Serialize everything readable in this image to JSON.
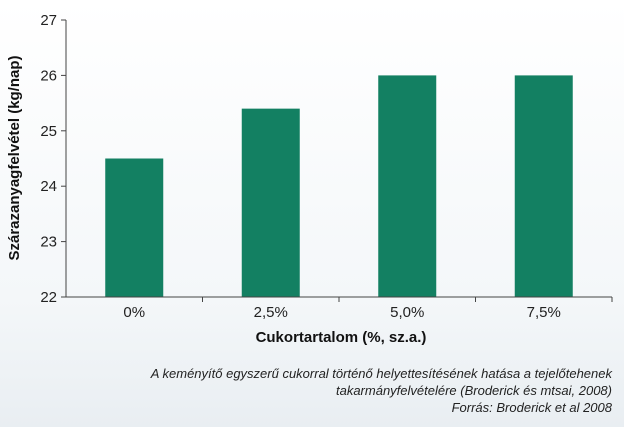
{
  "chart_data": {
    "type": "bar",
    "categories": [
      "0%",
      "2,5%",
      "5,0%",
      "7,5%"
    ],
    "values": [
      24.5,
      25.4,
      26.0,
      26.0
    ],
    "title": "",
    "xlabel": "Cukortartalom (%, sz.a.)",
    "ylabel": "Szárazanyagfelvétel (kg/nap)",
    "ylim": [
      22,
      27
    ],
    "yticks": [
      22,
      23,
      24,
      25,
      26,
      27
    ],
    "grid": false,
    "bar_color": "#138062"
  },
  "caption": {
    "line1": "A keményítő egyszerű cukorral történő helyettesítésének hatása a tejelőtehenek",
    "line2": "takarmányfelvételére (Broderick és mtsai, 2008)",
    "source": "Forrás: Broderick et al 2008"
  }
}
